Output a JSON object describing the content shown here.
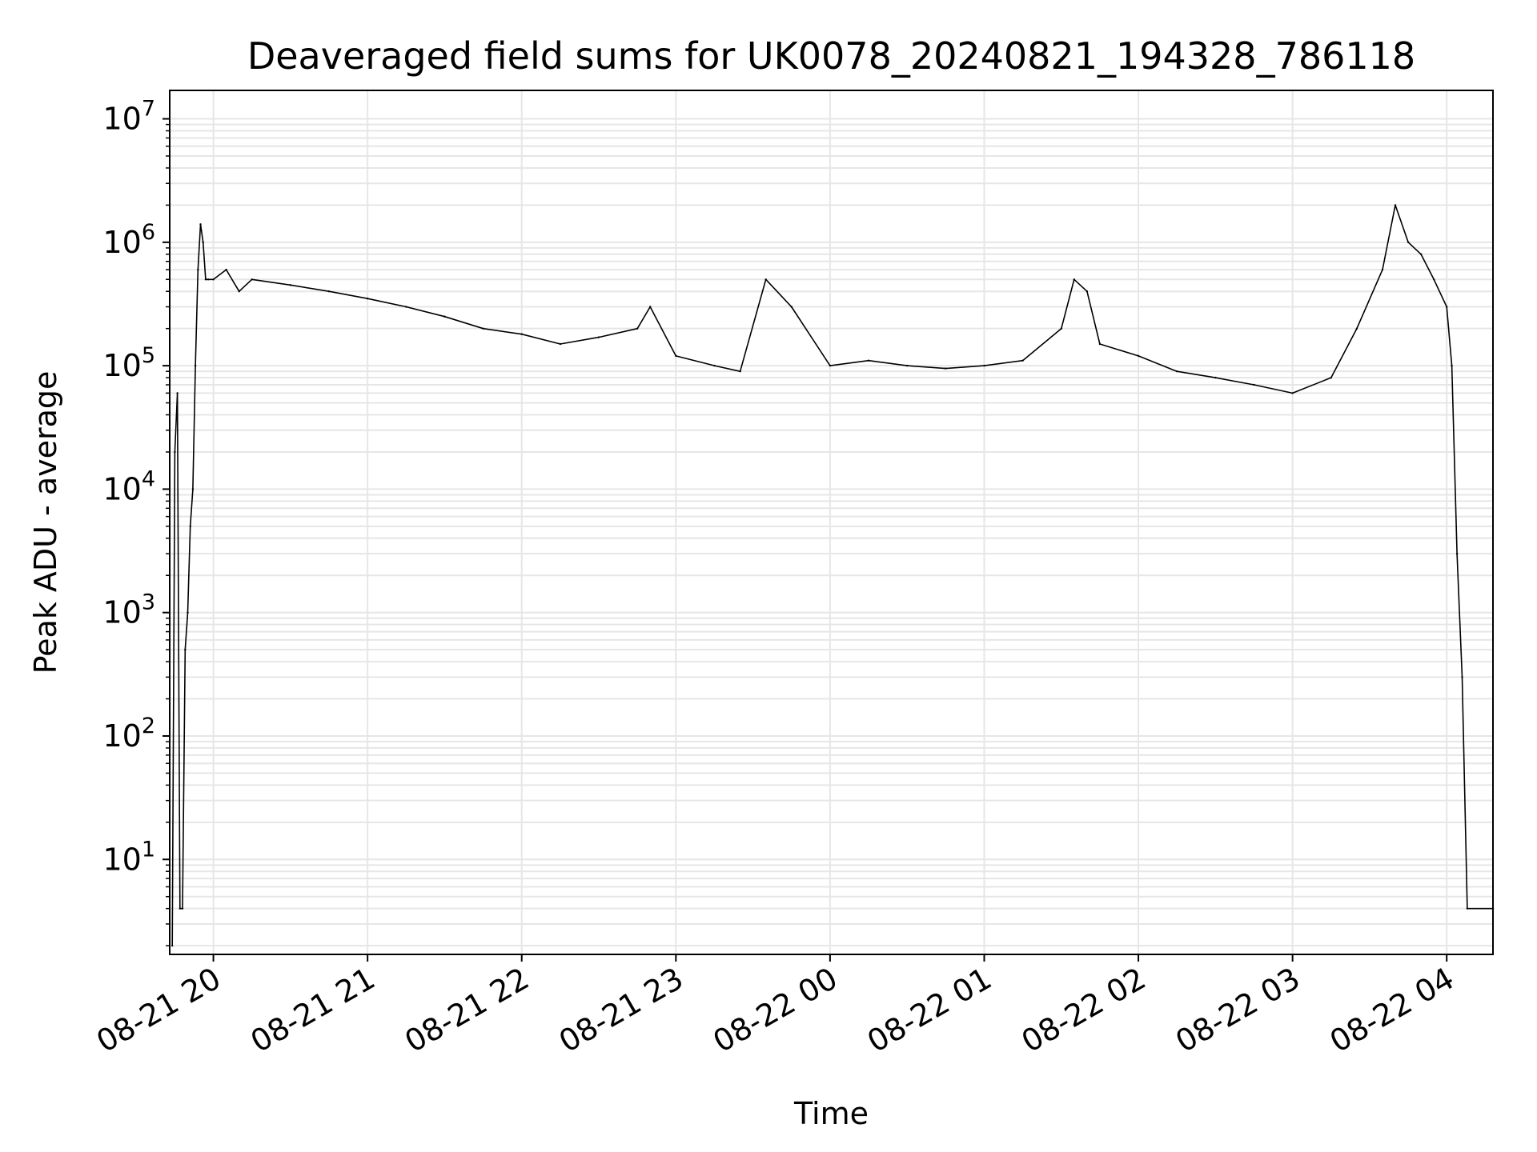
{
  "chart_data": {
    "type": "line",
    "title": "Deaveraged field sums for UK0078_20240821_194328_786118",
    "xlabel": "Time",
    "ylabel": "Peak ADU - average",
    "yscale": "log",
    "ylim": [
      1.7,
      17000000
    ],
    "xlim": [
      "2024-08-21 19:43",
      "2024-08-22 04:18"
    ],
    "grid": true,
    "line_color": "#000000",
    "grid_color": "#e6e6e6",
    "x_ticks": [
      "2024-08-21 20:00",
      "2024-08-21 21:00",
      "2024-08-21 22:00",
      "2024-08-21 23:00",
      "2024-08-22 00:00",
      "2024-08-22 01:00",
      "2024-08-22 02:00",
      "2024-08-22 03:00",
      "2024-08-22 04:00"
    ],
    "x_tick_labels": [
      "08-21 20",
      "08-21 21",
      "08-21 22",
      "08-21 23",
      "08-22 00",
      "08-22 01",
      "08-22 02",
      "08-22 03",
      "08-22 04"
    ],
    "y_ticks": [
      {
        "base": "10",
        "exp": "1",
        "value": 10
      },
      {
        "base": "10",
        "exp": "2",
        "value": 100
      },
      {
        "base": "10",
        "exp": "3",
        "value": 1000
      },
      {
        "base": "10",
        "exp": "4",
        "value": 10000
      },
      {
        "base": "10",
        "exp": "5",
        "value": 100000
      },
      {
        "base": "10",
        "exp": "6",
        "value": 1000000
      },
      {
        "base": "10",
        "exp": "7",
        "value": 10000000
      }
    ],
    "series": [
      {
        "x": [
          "2024-08-21 19:44",
          "2024-08-21 19:45",
          "2024-08-21 19:46",
          "2024-08-21 19:47",
          "2024-08-21 19:48",
          "2024-08-21 19:49",
          "2024-08-21 19:50",
          "2024-08-21 19:51",
          "2024-08-21 19:52",
          "2024-08-21 19:53",
          "2024-08-21 19:54",
          "2024-08-21 19:55",
          "2024-08-21 19:56",
          "2024-08-21 19:57",
          "2024-08-21 19:58",
          "2024-08-21 20:00",
          "2024-08-21 20:05",
          "2024-08-21 20:10",
          "2024-08-21 20:15",
          "2024-08-21 20:30",
          "2024-08-21 20:45",
          "2024-08-21 21:00",
          "2024-08-21 21:15",
          "2024-08-21 21:30",
          "2024-08-21 21:45",
          "2024-08-21 22:00",
          "2024-08-21 22:15",
          "2024-08-21 22:30",
          "2024-08-21 22:45",
          "2024-08-21 22:50",
          "2024-08-21 23:00",
          "2024-08-21 23:15",
          "2024-08-21 23:25",
          "2024-08-21 23:35",
          "2024-08-21 23:45",
          "2024-08-22 00:00",
          "2024-08-22 00:15",
          "2024-08-22 00:30",
          "2024-08-22 00:45",
          "2024-08-22 01:00",
          "2024-08-22 01:15",
          "2024-08-22 01:30",
          "2024-08-22 01:35",
          "2024-08-22 01:40",
          "2024-08-22 01:45",
          "2024-08-22 02:00",
          "2024-08-22 02:15",
          "2024-08-22 02:30",
          "2024-08-22 02:45",
          "2024-08-22 03:00",
          "2024-08-22 03:15",
          "2024-08-22 03:25",
          "2024-08-22 03:35",
          "2024-08-22 03:40",
          "2024-08-22 03:45",
          "2024-08-22 03:50",
          "2024-08-22 03:55",
          "2024-08-22 04:00",
          "2024-08-22 04:02",
          "2024-08-22 04:04",
          "2024-08-22 04:06",
          "2024-08-22 04:08",
          "2024-08-22 04:18"
        ],
        "y": [
          2,
          20000,
          60000,
          4,
          4,
          500,
          1000,
          5000,
          10000,
          100000,
          600000,
          1400000,
          1000000,
          500000,
          500000,
          500000,
          600000,
          400000,
          500000,
          450000,
          400000,
          350000,
          300000,
          250000,
          200000,
          180000,
          150000,
          170000,
          200000,
          300000,
          120000,
          100000,
          90000,
          500000,
          300000,
          100000,
          110000,
          100000,
          95000,
          100000,
          110000,
          200000,
          500000,
          400000,
          150000,
          120000,
          90000,
          80000,
          70000,
          60000,
          80000,
          200000,
          600000,
          2000000,
          1000000,
          800000,
          500000,
          300000,
          100000,
          3000,
          300,
          4,
          4
        ]
      }
    ]
  }
}
